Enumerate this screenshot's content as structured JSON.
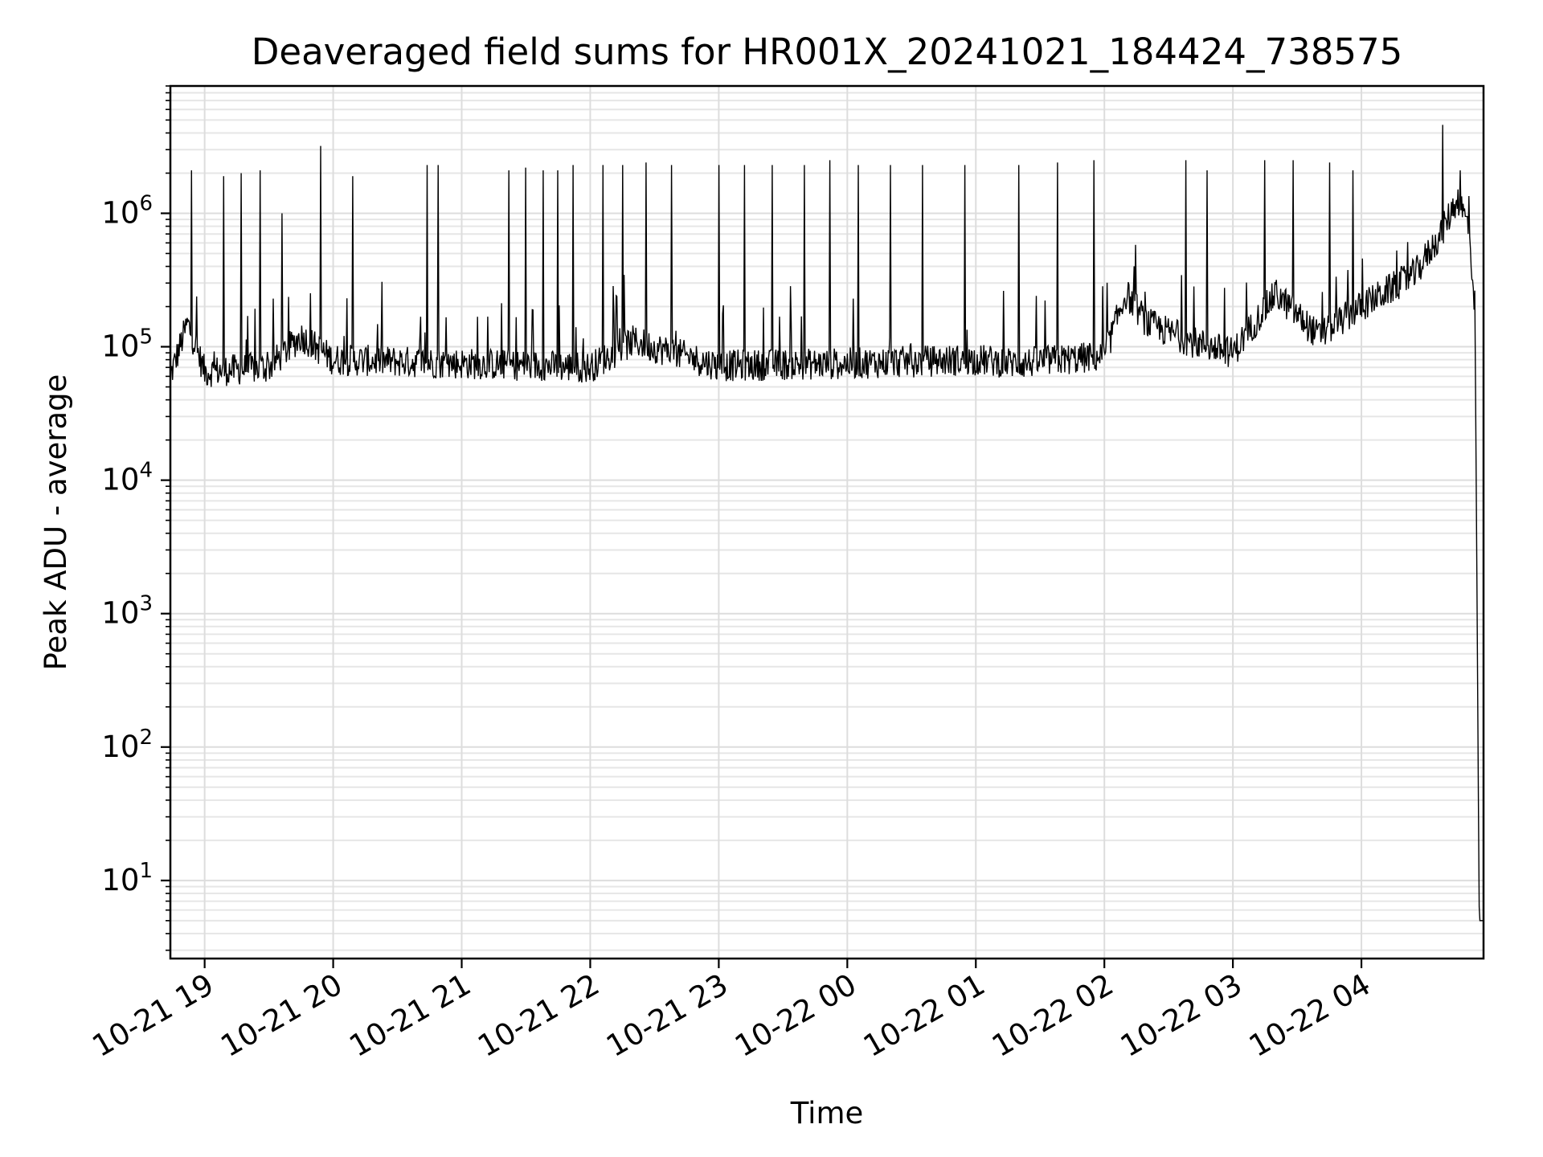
{
  "chart_data": {
    "type": "line",
    "title": "Deaveraged field sums for HR001X_20241021_184424_738575",
    "xlabel": "Time",
    "ylabel": "Peak ADU - average",
    "yscale": "log",
    "ylim": [
      2.6,
      9000000
    ],
    "xlim": [
      "2024-10-21 18:44",
      "2024-10-22 04:57"
    ],
    "grid": true,
    "x_ticks": [
      "2024-10-21 19:00",
      "2024-10-21 20:00",
      "2024-10-21 21:00",
      "2024-10-21 22:00",
      "2024-10-21 23:00",
      "2024-10-22 00:00",
      "2024-10-22 01:00",
      "2024-10-22 02:00",
      "2024-10-22 03:00",
      "2024-10-22 04:00"
    ],
    "x_tick_labels": [
      "10-21 19",
      "10-21 20",
      "10-21 21",
      "10-21 22",
      "10-21 23",
      "10-22 00",
      "10-22 01",
      "10-22 02",
      "10-22 03",
      "10-22 04"
    ],
    "y_ticks": [
      10,
      100,
      1000,
      10000,
      100000,
      1000000
    ],
    "y_tick_labels": [
      {
        "base": "10",
        "exp": "1"
      },
      {
        "base": "10",
        "exp": "2"
      },
      {
        "base": "10",
        "exp": "3"
      },
      {
        "base": "10",
        "exp": "4"
      },
      {
        "base": "10",
        "exp": "5"
      },
      {
        "base": "10",
        "exp": "6"
      }
    ],
    "series_color": "#000000",
    "baseline_segments": [
      {
        "x": "2024-10-21 18:44",
        "y": 60000
      },
      {
        "x": "2024-10-21 18:52",
        "y": 150000
      },
      {
        "x": "2024-10-21 19:00",
        "y": 65000
      },
      {
        "x": "2024-10-21 19:30",
        "y": 70000
      },
      {
        "x": "2024-10-21 19:45",
        "y": 120000
      },
      {
        "x": "2024-10-21 20:00",
        "y": 80000
      },
      {
        "x": "2024-10-21 21:00",
        "y": 75000
      },
      {
        "x": "2024-10-21 22:00",
        "y": 70000
      },
      {
        "x": "2024-10-21 22:20",
        "y": 110000
      },
      {
        "x": "2024-10-21 23:00",
        "y": 72000
      },
      {
        "x": "2024-10-22 00:00",
        "y": 75000
      },
      {
        "x": "2024-10-22 01:00",
        "y": 80000
      },
      {
        "x": "2024-10-22 01:20",
        "y": 75000
      },
      {
        "x": "2024-10-22 02:00",
        "y": 85000
      },
      {
        "x": "2024-10-22 02:10",
        "y": 250000
      },
      {
        "x": "2024-10-22 02:20",
        "y": 150000
      },
      {
        "x": "2024-10-22 02:40",
        "y": 110000
      },
      {
        "x": "2024-10-22 03:00",
        "y": 90000
      },
      {
        "x": "2024-10-22 03:20",
        "y": 250000
      },
      {
        "x": "2024-10-22 03:40",
        "y": 120000
      },
      {
        "x": "2024-10-22 04:00",
        "y": 200000
      },
      {
        "x": "2024-10-22 04:25",
        "y": 350000
      },
      {
        "x": "2024-10-22 04:37",
        "y": 700000
      },
      {
        "x": "2024-10-22 04:45",
        "y": 1300000
      },
      {
        "x": "2024-10-22 04:50",
        "y": 800000
      },
      {
        "x": "2024-10-22 04:53",
        "y": 200000
      },
      {
        "x": "2024-10-22 04:54",
        "y": 1200
      },
      {
        "x": "2024-10-22 04:55",
        "y": 5
      },
      {
        "x": "2024-10-22 04:57",
        "y": 5
      }
    ],
    "spikes": [
      {
        "x": "2024-10-21 18:54",
        "y": 2100000
      },
      {
        "x": "2024-10-21 19:09",
        "y": 1900000
      },
      {
        "x": "2024-10-21 19:17",
        "y": 2000000
      },
      {
        "x": "2024-10-21 19:26",
        "y": 2100000
      },
      {
        "x": "2024-10-21 19:36",
        "y": 1000000
      },
      {
        "x": "2024-10-21 19:54",
        "y": 3200000
      },
      {
        "x": "2024-10-21 20:09",
        "y": 1900000
      },
      {
        "x": "2024-10-21 20:44",
        "y": 2300000
      },
      {
        "x": "2024-10-21 20:49",
        "y": 2300000
      },
      {
        "x": "2024-10-21 21:22",
        "y": 2100000
      },
      {
        "x": "2024-10-21 21:30",
        "y": 2200000
      },
      {
        "x": "2024-10-21 21:38",
        "y": 2100000
      },
      {
        "x": "2024-10-21 21:45",
        "y": 2100000
      },
      {
        "x": "2024-10-21 21:52",
        "y": 2300000
      },
      {
        "x": "2024-10-21 22:06",
        "y": 2300000
      },
      {
        "x": "2024-10-21 22:15",
        "y": 2300000
      },
      {
        "x": "2024-10-21 22:26",
        "y": 2400000
      },
      {
        "x": "2024-10-21 22:38",
        "y": 2300000
      },
      {
        "x": "2024-10-21 23:00",
        "y": 2300000
      },
      {
        "x": "2024-10-21 23:12",
        "y": 2300000
      },
      {
        "x": "2024-10-21 23:25",
        "y": 2300000
      },
      {
        "x": "2024-10-21 23:40",
        "y": 2300000
      },
      {
        "x": "2024-10-21 23:52",
        "y": 2500000
      },
      {
        "x": "2024-10-22 00:05",
        "y": 2300000
      },
      {
        "x": "2024-10-22 00:20",
        "y": 2300000
      },
      {
        "x": "2024-10-22 00:35",
        "y": 2300000
      },
      {
        "x": "2024-10-22 00:55",
        "y": 2300000
      },
      {
        "x": "2024-10-22 01:20",
        "y": 2300000
      },
      {
        "x": "2024-10-22 01:38",
        "y": 2400000
      },
      {
        "x": "2024-10-22 01:55",
        "y": 2500000
      },
      {
        "x": "2024-10-22 02:38",
        "y": 2500000
      },
      {
        "x": "2024-10-22 02:48",
        "y": 2100000
      },
      {
        "x": "2024-10-22 03:15",
        "y": 2500000
      },
      {
        "x": "2024-10-22 03:28",
        "y": 2500000
      },
      {
        "x": "2024-10-22 03:45",
        "y": 2400000
      },
      {
        "x": "2024-10-22 03:56",
        "y": 2100000
      },
      {
        "x": "2024-10-22 04:38",
        "y": 4600000
      },
      {
        "x": "2024-10-22 04:46",
        "y": 2100000
      }
    ]
  }
}
